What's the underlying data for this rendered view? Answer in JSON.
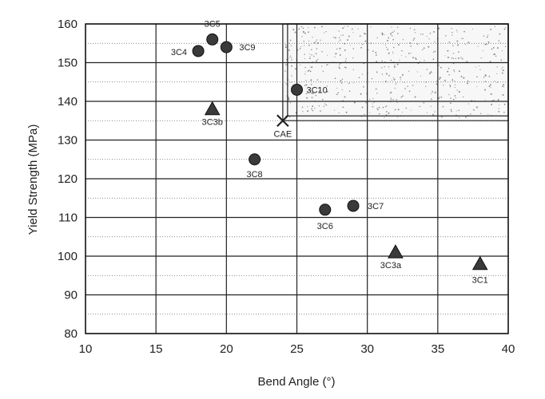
{
  "chart_data": {
    "type": "scatter",
    "title": "",
    "xlabel": "Bend Angle (°)",
    "ylabel": "Yield Strength (MPa)",
    "xlim": [
      10,
      40
    ],
    "ylim": [
      80,
      160
    ],
    "x_ticks": [
      10,
      15,
      20,
      25,
      30,
      35,
      40
    ],
    "y_ticks": [
      80,
      90,
      100,
      110,
      120,
      130,
      140,
      150,
      160
    ],
    "grid": "major solid, minor dotted every 10 MPa",
    "target_region": {
      "x": [
        24,
        40
      ],
      "y": [
        135,
        160
      ],
      "fill": "stippled"
    },
    "points": [
      {
        "label": "3C5",
        "x": 19,
        "y": 156,
        "marker": "circle"
      },
      {
        "label": "3C4",
        "x": 18,
        "y": 153,
        "marker": "circle"
      },
      {
        "label": "3C9",
        "x": 20,
        "y": 154,
        "marker": "circle"
      },
      {
        "label": "3C10",
        "x": 25,
        "y": 143,
        "marker": "circle"
      },
      {
        "label": "3C3b",
        "x": 19,
        "y": 138,
        "marker": "triangle"
      },
      {
        "label": "CAE",
        "x": 24,
        "y": 135,
        "marker": "x"
      },
      {
        "label": "3C8",
        "x": 22,
        "y": 125,
        "marker": "circle"
      },
      {
        "label": "3C6",
        "x": 27,
        "y": 112,
        "marker": "circle"
      },
      {
        "label": "3C7",
        "x": 29,
        "y": 113,
        "marker": "circle"
      },
      {
        "label": "3C3a",
        "x": 32,
        "y": 101,
        "marker": "triangle"
      },
      {
        "label": "3C1",
        "x": 38,
        "y": 98,
        "marker": "triangle"
      }
    ]
  }
}
